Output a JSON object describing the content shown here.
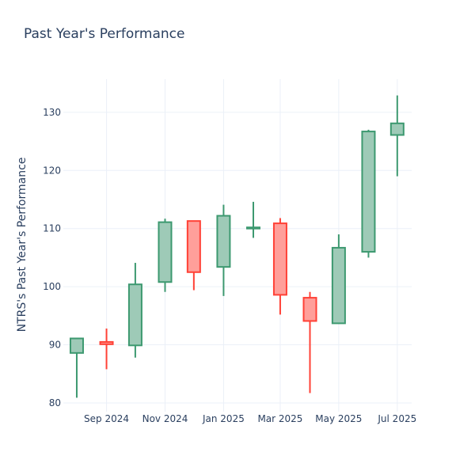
{
  "chart_data": {
    "type": "candlestick",
    "title": "Past Year's Performance",
    "xlabel": "",
    "ylabel": "NTRS's Past Year's Performance",
    "ylim": [
      78.5,
      135.7
    ],
    "y_ticks": [
      80,
      90,
      100,
      110,
      120,
      130
    ],
    "x_ticks": [
      {
        "date": "2024-09-01",
        "label": "Sep 2024"
      },
      {
        "date": "2024-11-01",
        "label": "Nov 2024"
      },
      {
        "date": "2025-01-01",
        "label": "Jan 2025"
      },
      {
        "date": "2025-03-01",
        "label": "Mar 2025"
      },
      {
        "date": "2025-05-01",
        "label": "May 2025"
      },
      {
        "date": "2025-07-01",
        "label": "Jul 2025"
      }
    ],
    "x_range": [
      "2024-07-18",
      "2025-07-16"
    ],
    "grid": true,
    "increasing_color": "#3d9970",
    "increasing_fill": "#9ecab7",
    "decreasing_color": "#ff4136",
    "decreasing_fill": "#ff9f9a",
    "candles": [
      {
        "date": "2024-08-01",
        "open": 88.6,
        "high": 91.2,
        "low": 80.9,
        "close": 91.1
      },
      {
        "date": "2024-09-01",
        "open": 90.5,
        "high": 92.8,
        "low": 85.8,
        "close": 90.1
      },
      {
        "date": "2024-10-01",
        "open": 89.9,
        "high": 104.1,
        "low": 87.8,
        "close": 100.4
      },
      {
        "date": "2024-11-01",
        "open": 100.8,
        "high": 111.7,
        "low": 99.1,
        "close": 111.1
      },
      {
        "date": "2024-12-01",
        "open": 111.3,
        "high": 111.3,
        "low": 99.4,
        "close": 102.5
      },
      {
        "date": "2025-01-01",
        "open": 103.4,
        "high": 114.1,
        "low": 98.4,
        "close": 112.2
      },
      {
        "date": "2025-02-01",
        "open": 110.0,
        "high": 114.6,
        "low": 108.4,
        "close": 110.2
      },
      {
        "date": "2025-03-01",
        "open": 110.9,
        "high": 111.8,
        "low": 95.2,
        "close": 98.6
      },
      {
        "date": "2025-04-01",
        "open": 98.1,
        "high": 99.1,
        "low": 81.7,
        "close": 94.1
      },
      {
        "date": "2025-05-01",
        "open": 93.7,
        "high": 109.0,
        "low": 93.6,
        "close": 106.7
      },
      {
        "date": "2025-06-01",
        "open": 106.0,
        "high": 127.0,
        "low": 105.0,
        "close": 126.7
      },
      {
        "date": "2025-07-01",
        "open": 126.1,
        "high": 132.9,
        "low": 119.0,
        "close": 128.1
      }
    ]
  }
}
